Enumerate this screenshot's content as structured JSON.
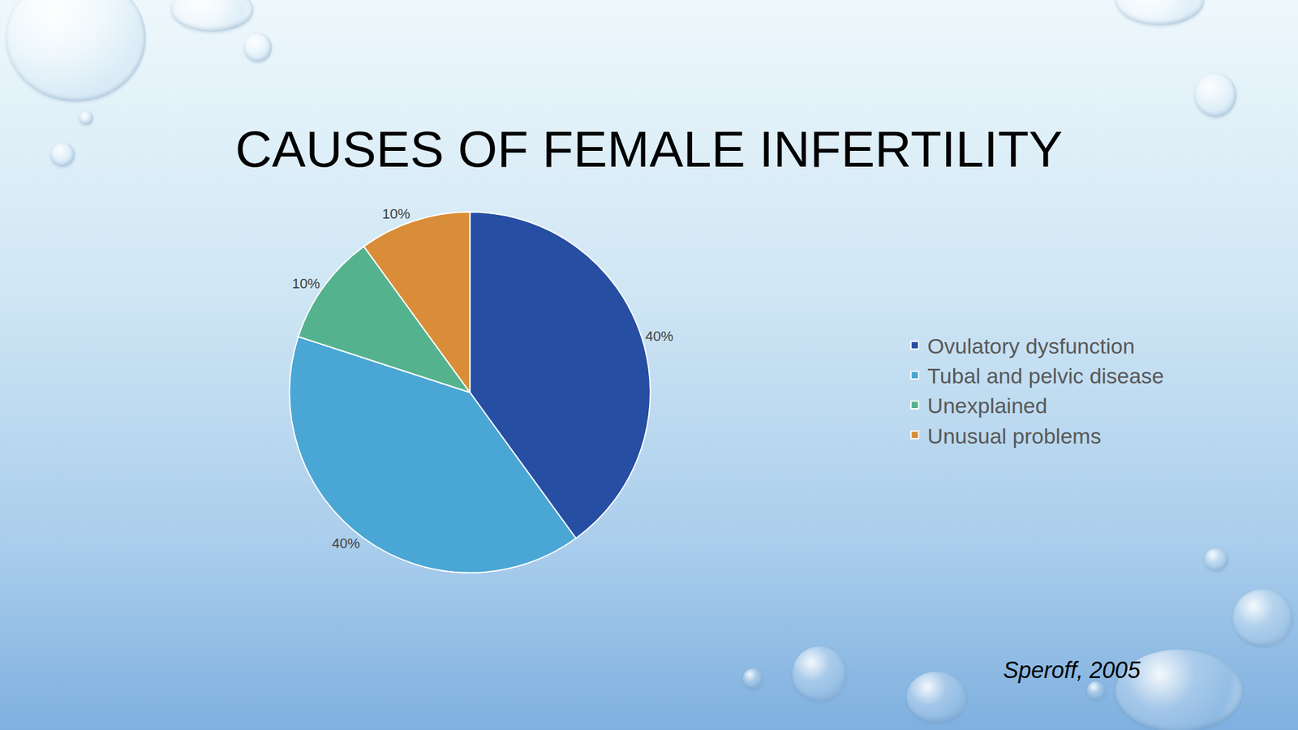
{
  "chart_data": {
    "type": "pie",
    "title": "CAUSES OF FEMALE INFERTILITY",
    "categories": [
      "Ovulatory dysfunction",
      "Tubal and pelvic disease",
      "Unexplained",
      "Unusual problems"
    ],
    "values": [
      40,
      40,
      10,
      10
    ],
    "value_labels": [
      "40%",
      "40%",
      "10%",
      "10%"
    ],
    "colors": [
      "#264ea3",
      "#4aa6d4",
      "#55b28f",
      "#d98d38"
    ],
    "data_labels": true,
    "legend": "right",
    "annotations": [
      "Speroff, 2005"
    ]
  }
}
